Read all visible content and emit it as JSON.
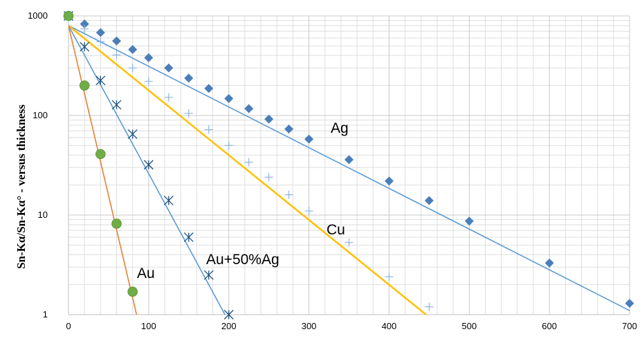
{
  "chart_data": {
    "type": "scatter",
    "title": "",
    "xlabel": "",
    "ylabel": "Sn-Kα/Sn-Kα° - versus thickness",
    "xlim": [
      0,
      700
    ],
    "ylim": [
      1,
      1000
    ],
    "yscale": "log",
    "grid": true,
    "x_ticks": [
      "0",
      "100",
      "200",
      "300",
      "400",
      "500",
      "600",
      "700"
    ],
    "y_ticks": [
      "1",
      "10",
      "100",
      "1000"
    ],
    "series": [
      {
        "name": "Ag",
        "marker": "diamond",
        "color": "#4A7EBB",
        "points": [
          [
            0,
            1000
          ],
          [
            20,
            830
          ],
          [
            40,
            680
          ],
          [
            60,
            560
          ],
          [
            80,
            460
          ],
          [
            100,
            380
          ],
          [
            125,
            300
          ],
          [
            150,
            237
          ],
          [
            175,
            187
          ],
          [
            200,
            148
          ],
          [
            225,
            117
          ],
          [
            250,
            92
          ],
          [
            275,
            73
          ],
          [
            300,
            58
          ],
          [
            350,
            36
          ],
          [
            400,
            22
          ],
          [
            450,
            14
          ],
          [
            500,
            8.7
          ],
          [
            600,
            3.3
          ],
          [
            700,
            1.3
          ]
        ],
        "fit_line": {
          "color": "#5B9BD5",
          "points": [
            [
              0,
              800
            ],
            [
              700,
              1.1
            ]
          ]
        }
      },
      {
        "name": "Cu",
        "marker": "plus",
        "color": "#8DB3E2",
        "points": [
          [
            0,
            1000
          ],
          [
            20,
            740
          ],
          [
            40,
            550
          ],
          [
            60,
            405
          ],
          [
            80,
            300
          ],
          [
            100,
            220
          ],
          [
            125,
            152
          ],
          [
            150,
            105
          ],
          [
            175,
            72
          ],
          [
            200,
            50
          ],
          [
            225,
            34
          ],
          [
            250,
            24
          ],
          [
            275,
            16
          ],
          [
            300,
            11
          ],
          [
            350,
            5.3
          ],
          [
            400,
            2.4
          ],
          [
            450,
            1.2
          ]
        ],
        "fit_line": {
          "color": "#FFC000",
          "points": [
            [
              0,
              800
            ],
            [
              457,
              0.85
            ]
          ]
        }
      },
      {
        "name": "Au+50%Ag",
        "marker": "asterisk",
        "color": "#4A7EBB",
        "points": [
          [
            0,
            1000
          ],
          [
            20,
            490
          ],
          [
            40,
            225
          ],
          [
            60,
            128
          ],
          [
            80,
            65
          ],
          [
            100,
            32
          ],
          [
            125,
            14
          ],
          [
            150,
            6
          ],
          [
            175,
            2.5
          ],
          [
            200,
            1
          ]
        ],
        "fit_line": {
          "color": "#5B9BD5",
          "points": [
            [
              0,
              800
            ],
            [
              200,
              0.85
            ]
          ]
        }
      },
      {
        "name": "Au",
        "marker": "circle",
        "color": "#70AD47",
        "points": [
          [
            0,
            1000
          ],
          [
            20,
            200
          ],
          [
            40,
            41
          ],
          [
            60,
            8.2
          ],
          [
            80,
            1.7
          ]
        ],
        "fit_line": {
          "color": "#ED7D31",
          "points": [
            [
              0,
              800
            ],
            [
              87,
              0.85
            ]
          ]
        }
      }
    ]
  }
}
